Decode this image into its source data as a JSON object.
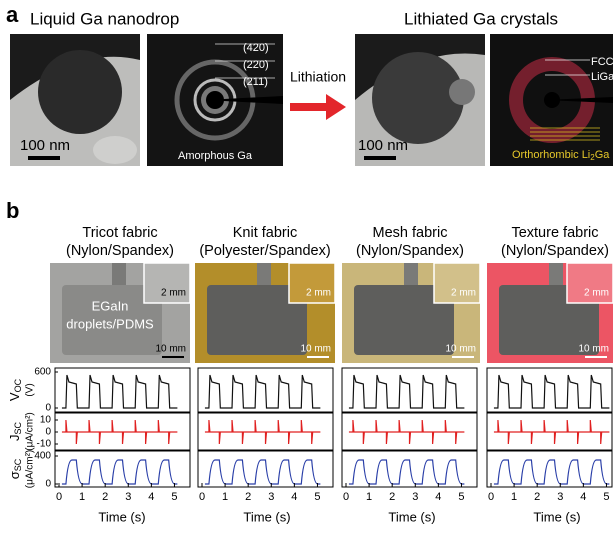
{
  "panel_a": {
    "label": "a",
    "left_title": "Liquid Ga nanodrop",
    "right_title": "Lithiated Ga crystals",
    "left_scale_bar": "100 nm",
    "right_scale_bar": "100 nm",
    "rings": [
      "(420)",
      "(220)",
      "(211)"
    ],
    "left_caption": "Amorphous Ga",
    "arrow_label": "Lithiation",
    "phase_1": "FCC",
    "phase_2": "LiGa",
    "right_caption": {
      "main": "Orthorhombic Li",
      "sub": "2",
      "end": "Ga"
    }
  },
  "panel_b": {
    "label": "b",
    "fabrics": [
      {
        "name": "Tricot fabric",
        "material": "(Nylon/Spandex)",
        "inset_scale": "2 mm",
        "scale": "10 mm"
      },
      {
        "name": "Knit fabric",
        "material": "(Polyester/Spandex)",
        "inset_scale": "2 mm",
        "scale": "10 mm"
      },
      {
        "name": "Mesh fabric",
        "material": "(Nylon/Spandex)",
        "inset_scale": "2 mm",
        "scale": "10 mm"
      },
      {
        "name": "Texture fabric",
        "material": "(Nylon/Spandex)",
        "inset_scale": "2 mm",
        "scale": "10 mm"
      }
    ],
    "sample_label": [
      "EGaIn",
      "droplets/PDMS"
    ],
    "rows": [
      {
        "symbol": "V",
        "sub": "OC",
        "unit": "(V)",
        "ticks": [
          600,
          0
        ]
      },
      {
        "symbol": "J",
        "sub": "SC",
        "unit": "(μA/cm²)",
        "ticks": [
          10,
          0,
          -10
        ]
      },
      {
        "symbol": "σ",
        "sub": "SC",
        "unit": "(μA/cm²)",
        "ticks": [
          400,
          0
        ]
      }
    ],
    "time_ticks": [
      0,
      1,
      2,
      3,
      4,
      5
    ],
    "time_label": "Time (s)"
  }
}
